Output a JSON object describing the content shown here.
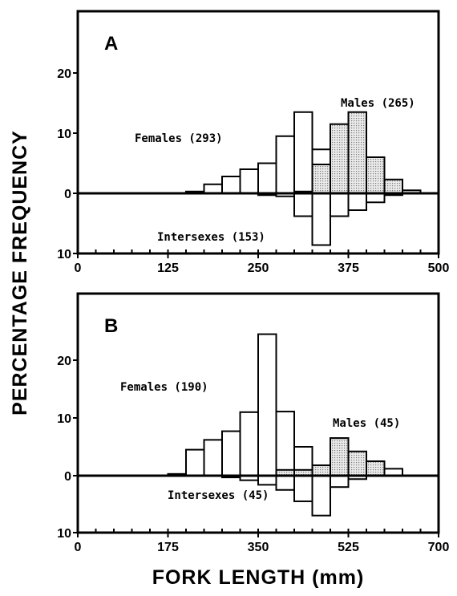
{
  "chart_data": [
    {
      "panel": "A",
      "type": "histogram",
      "xlabel": "FORK LENGTH (mm)",
      "ylabel": "PERCENTAGE FREQUENCY",
      "xlim": [
        0,
        500
      ],
      "x_ticks": [
        "0",
        "125",
        "250",
        "375",
        "500"
      ],
      "y_ticks_up": [
        "10",
        "20"
      ],
      "y_ticks_down": [
        "0",
        "10"
      ],
      "y_up_range": [
        0,
        20
      ],
      "y_down_range": [
        0,
        10
      ],
      "bin_width": 25,
      "series": [
        {
          "name": "Females (293)",
          "direction": "up",
          "fill": "none",
          "bins": [
            [
              150,
              0.3
            ],
            [
              175,
              1.5
            ],
            [
              200,
              2.8
            ],
            [
              225,
              4.0
            ],
            [
              250,
              5.0
            ],
            [
              275,
              9.5
            ],
            [
              300,
              13.5
            ],
            [
              325,
              7.3
            ],
            [
              350,
              4.0
            ],
            [
              375,
              2.8
            ],
            [
              400,
              1.5
            ],
            [
              425,
              0.7
            ]
          ]
        },
        {
          "name": "Males (265)",
          "direction": "up",
          "fill": "stipple",
          "bins": [
            [
              300,
              0.3
            ],
            [
              325,
              4.8
            ],
            [
              350,
              11.5
            ],
            [
              375,
              13.5
            ],
            [
              400,
              6.0
            ],
            [
              425,
              2.3
            ],
            [
              450,
              0.5
            ]
          ]
        },
        {
          "name": "Intersexes (153)",
          "direction": "down",
          "fill": "none",
          "bins": [
            [
              250,
              0.3
            ],
            [
              275,
              0.5
            ],
            [
              300,
              3.8
            ],
            [
              325,
              8.6
            ],
            [
              350,
              3.8
            ],
            [
              375,
              2.8
            ],
            [
              400,
              1.5
            ],
            [
              425,
              0.3
            ]
          ]
        }
      ]
    },
    {
      "panel": "B",
      "type": "histogram",
      "xlabel": "FORK LENGTH (mm)",
      "ylabel": "PERCENTAGE FREQUENCY",
      "xlim": [
        0,
        700
      ],
      "x_ticks": [
        "0",
        "175",
        "350",
        "525",
        "700"
      ],
      "y_ticks_up": [
        "10",
        "20"
      ],
      "y_ticks_down": [
        "0",
        "10"
      ],
      "y_up_range": [
        0,
        27
      ],
      "y_down_range": [
        0,
        10
      ],
      "bin_width": 35,
      "series": [
        {
          "name": "Females (190)",
          "direction": "up",
          "fill": "none",
          "bins": [
            [
              175,
              0.3
            ],
            [
              210,
              4.5
            ],
            [
              245,
              6.2
            ],
            [
              280,
              7.7
            ],
            [
              315,
              11.0
            ],
            [
              350,
              24.5
            ],
            [
              385,
              11.1
            ],
            [
              420,
              5.0
            ],
            [
              455,
              1.5
            ],
            [
              490,
              6.5
            ],
            [
              525,
              4.0
            ],
            [
              560,
              2.0
            ],
            [
              595,
              1.2
            ]
          ]
        },
        {
          "name": "Males (45)",
          "direction": "up",
          "fill": "stipple",
          "bins": [
            [
              385,
              1.0
            ],
            [
              420,
              1.0
            ],
            [
              455,
              1.8
            ],
            [
              490,
              6.5
            ],
            [
              525,
              4.2
            ],
            [
              560,
              2.5
            ]
          ]
        },
        {
          "name": "Intersexes (45)",
          "direction": "down",
          "fill": "none",
          "bins": [
            [
              280,
              0.3
            ],
            [
              315,
              0.8
            ],
            [
              350,
              1.6
            ],
            [
              385,
              2.5
            ],
            [
              420,
              4.5
            ],
            [
              455,
              7.0
            ],
            [
              490,
              2.0
            ],
            [
              525,
              0.6
            ]
          ]
        }
      ]
    }
  ]
}
